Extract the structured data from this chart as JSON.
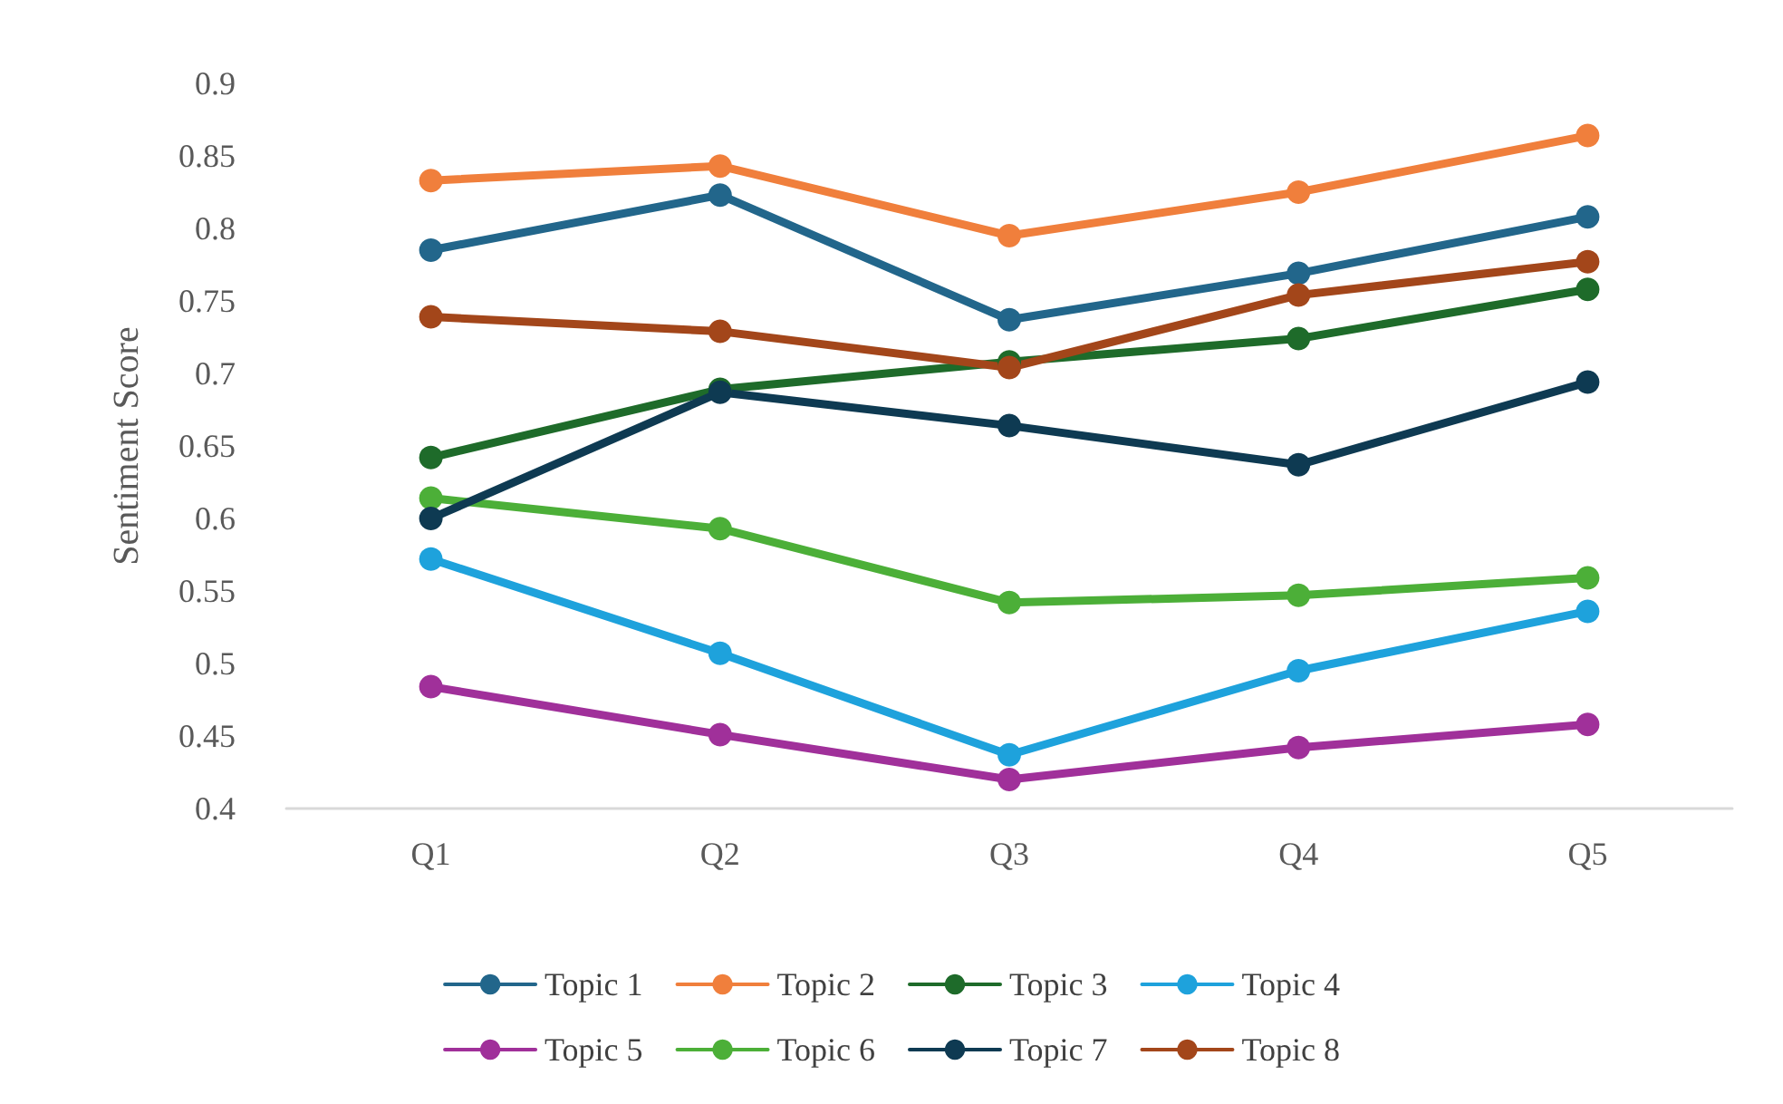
{
  "chart_data": {
    "type": "line",
    "ylabel": "Sentiment Score",
    "categories": [
      "Q1",
      "Q2",
      "Q3",
      "Q4",
      "Q5"
    ],
    "ylim": [
      0.4,
      0.9
    ],
    "yticks": [
      0.4,
      0.45,
      0.5,
      0.55,
      0.6,
      0.65,
      0.7,
      0.75,
      0.8,
      0.85,
      0.9
    ],
    "grid": false,
    "legend": "bottom",
    "marker": "circle",
    "line_style": "solid",
    "series": [
      {
        "name": "Topic 1",
        "color": "#22668b",
        "values": [
          0.785,
          0.823,
          0.737,
          0.769,
          0.808
        ]
      },
      {
        "name": "Topic 2",
        "color": "#f07f3c",
        "values": [
          0.833,
          0.843,
          0.795,
          0.825,
          0.864
        ]
      },
      {
        "name": "Topic 3",
        "color": "#1e6b2a",
        "values": [
          0.642,
          0.689,
          0.708,
          0.724,
          0.758
        ]
      },
      {
        "name": "Topic 4",
        "color": "#1ea2dc",
        "values": [
          0.572,
          0.507,
          0.437,
          0.495,
          0.536
        ]
      },
      {
        "name": "Topic 5",
        "color": "#a0309a",
        "values": [
          0.484,
          0.451,
          0.42,
          0.442,
          0.458
        ]
      },
      {
        "name": "Topic 6",
        "color": "#4caf38",
        "values": [
          0.614,
          0.593,
          0.542,
          0.547,
          0.559
        ]
      },
      {
        "name": "Topic 7",
        "color": "#0e3a52",
        "values": [
          0.6,
          0.687,
          0.664,
          0.637,
          0.694
        ]
      },
      {
        "name": "Topic 8",
        "color": "#a3461a",
        "values": [
          0.739,
          0.729,
          0.704,
          0.754,
          0.777
        ]
      }
    ]
  }
}
